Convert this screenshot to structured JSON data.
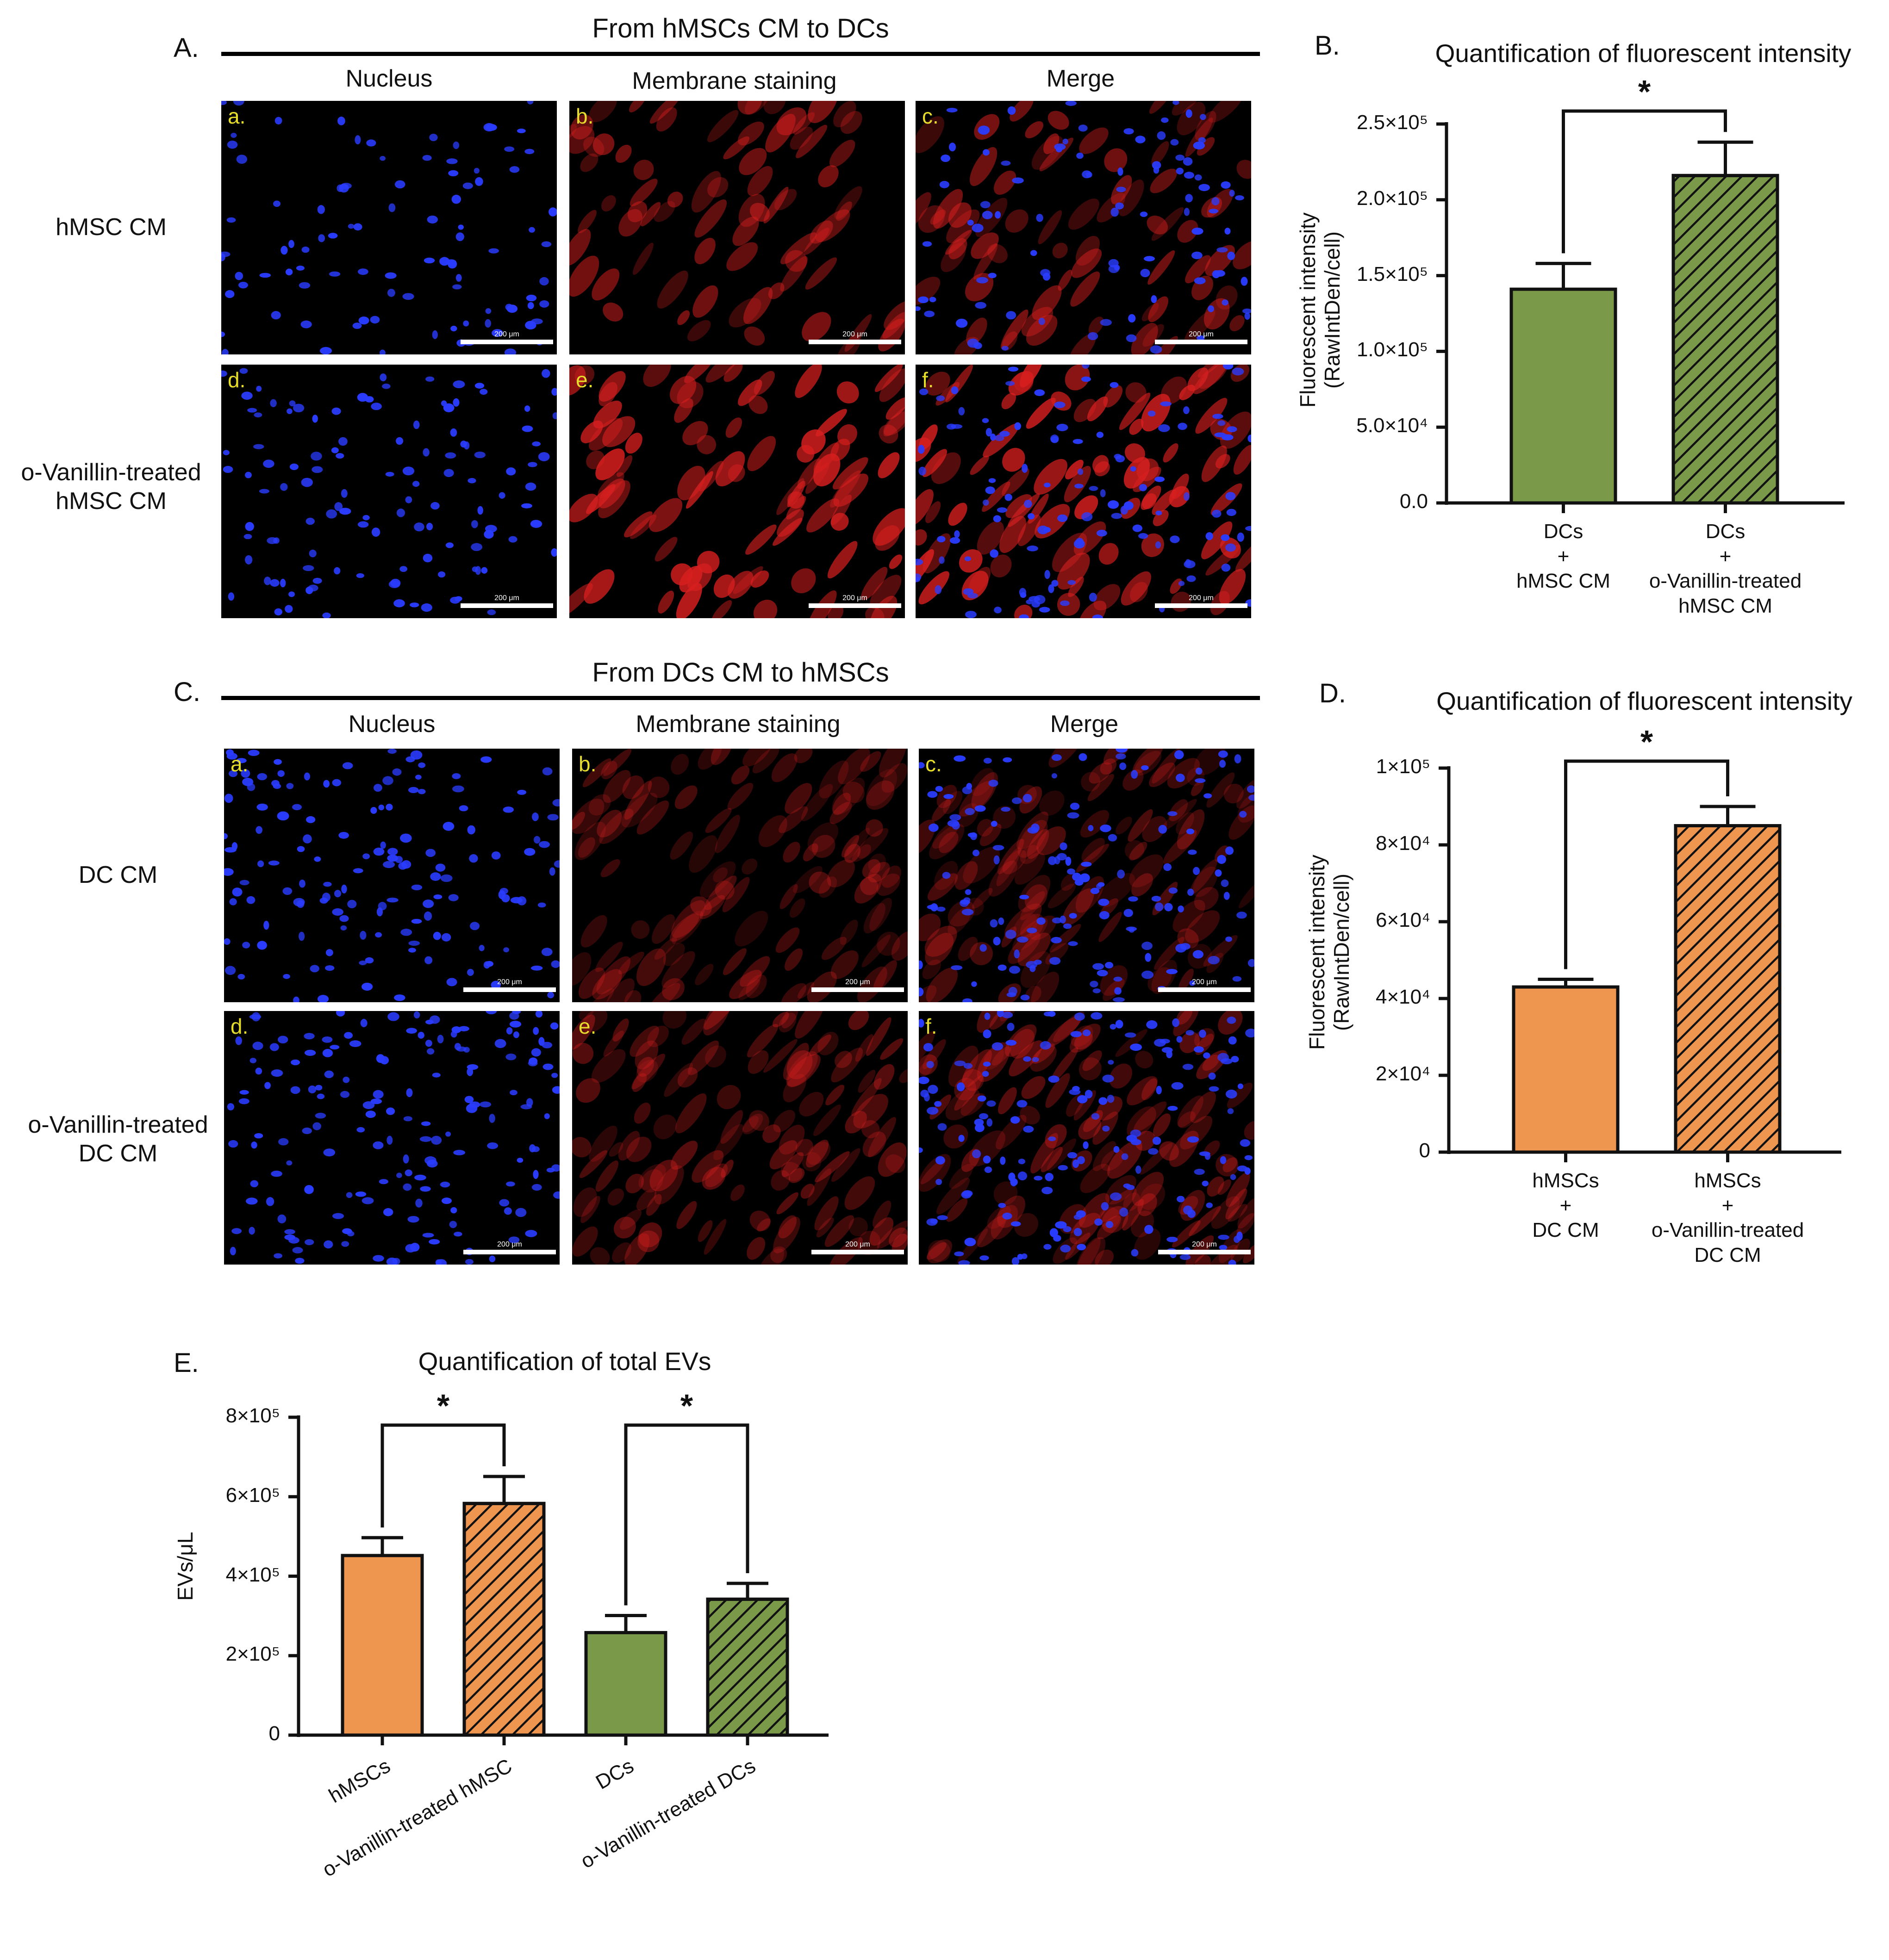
{
  "sectionA": {
    "label": "A.",
    "title": "From hMSCs CM to DCs",
    "columns": [
      "Nucleus",
      "Membrane staining",
      "Merge"
    ],
    "rows": [
      {
        "label": "hMSC CM",
        "tags": [
          "a.",
          "b.",
          "c."
        ]
      },
      {
        "label": "o-Vanillin-treated\nhMSC CM",
        "tags": [
          "d.",
          "e.",
          "f."
        ]
      }
    ],
    "scale_text": "200 μm"
  },
  "sectionC": {
    "label": "C.",
    "title": "From DCs CM to hMSCs",
    "columns": [
      "Nucleus",
      "Membrane staining",
      "Merge"
    ],
    "rows": [
      {
        "label": "DC CM",
        "tags": [
          "a.",
          "b.",
          "c."
        ]
      },
      {
        "label": "o-Vanillin-treated\nDC CM",
        "tags": [
          "d.",
          "e.",
          "f."
        ]
      }
    ],
    "scale_text": "200 μm"
  },
  "colors": {
    "green": "#7a9a4a",
    "orange": "#ee9550",
    "nucleus_blue": "#2a3cff",
    "membrane_red": "#d81f1f"
  },
  "chart_data": [
    {
      "id": "B",
      "panel_label": "B.",
      "type": "bar",
      "title": "Quantification of fluorescent intensity",
      "ylabel": [
        "Fluorescent intensity",
        "(RawIntDen/cell)"
      ],
      "ylim": [
        0,
        250000
      ],
      "yticks": [
        0,
        50000,
        100000,
        150000,
        200000,
        250000
      ],
      "ytick_labels": [
        "0.0",
        "5.0×10⁴",
        "1.0×10⁵",
        "1.5×10⁵",
        "2.0×10⁵",
        "2.5×10⁵"
      ],
      "categories": [
        "DCs\n+\nhMSC CM",
        "DCs\n+\no-Vanillin-treated\nhMSC CM"
      ],
      "values": [
        141000,
        216000
      ],
      "errors": [
        17000,
        22000
      ],
      "bar_colors": [
        "#7a9a4a",
        "#7a9a4a"
      ],
      "hatched": [
        false,
        true
      ],
      "significance": [
        {
          "pair": [
            0,
            1
          ],
          "label": "*"
        }
      ]
    },
    {
      "id": "D",
      "panel_label": "D.",
      "type": "bar",
      "title": "Quantification of fluorescent intensity",
      "ylabel": [
        "Fluorescent intensity",
        "(RawIntDen/cell)"
      ],
      "ylim": [
        0,
        100000
      ],
      "yticks": [
        0,
        20000,
        40000,
        60000,
        80000,
        100000
      ],
      "ytick_labels": [
        "0",
        "2×10⁴",
        "4×10⁴",
        "6×10⁴",
        "8×10⁴",
        "1×10⁵"
      ],
      "categories": [
        "hMSCs\n+\nDC CM",
        "hMSCs\n+\no-Vanillin-treated\nDC CM"
      ],
      "values": [
        43000,
        85000
      ],
      "errors": [
        2000,
        5000
      ],
      "bar_colors": [
        "#ee9550",
        "#ee9550"
      ],
      "hatched": [
        false,
        true
      ],
      "significance": [
        {
          "pair": [
            0,
            1
          ],
          "label": "*"
        }
      ]
    },
    {
      "id": "E",
      "panel_label": "E.",
      "type": "bar",
      "title": "Quantification of total EVs",
      "ylabel": [
        "EVs/μL"
      ],
      "ylim": [
        0,
        800000
      ],
      "yticks": [
        0,
        200000,
        400000,
        600000,
        800000
      ],
      "ytick_labels": [
        "0",
        "2×10⁵",
        "4×10⁵",
        "6×10⁵",
        "8×10⁵"
      ],
      "categories": [
        "hMSCs",
        "o-Vanillin-treated hMSC",
        "DCs",
        "o-Vanillin-treated DCs"
      ],
      "values": [
        452000,
        583000,
        258000,
        342000
      ],
      "errors": [
        45000,
        68000,
        43000,
        40000
      ],
      "bar_colors": [
        "#ee9550",
        "#ee9550",
        "#7a9a4a",
        "#7a9a4a"
      ],
      "hatched": [
        false,
        true,
        false,
        true
      ],
      "significance": [
        {
          "pair": [
            0,
            1
          ],
          "label": "*"
        },
        {
          "pair": [
            2,
            3
          ],
          "label": "*"
        }
      ]
    }
  ]
}
